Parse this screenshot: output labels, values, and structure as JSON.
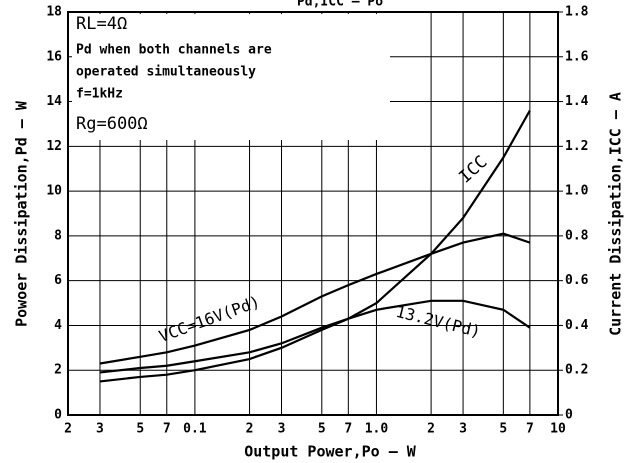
{
  "chart_data": {
    "type": "line",
    "title": "Pd,ICC – Po",
    "xlabel": "Output Power,Po – W",
    "ylabel": "Powoer Dissipation,Pd – W",
    "y2label": "Current Dissipation,ICC – A",
    "log_x": true,
    "grid": true,
    "x": [
      0.03,
      0.05,
      0.07,
      0.1,
      0.2,
      0.3,
      0.5,
      0.7,
      1,
      2,
      3,
      5,
      7
    ],
    "series": [
      {
        "name": "VCC=16V(Pd)",
        "color": "#000000",
        "values": [
          2.3,
          2.6,
          2.8,
          3.1,
          3.8,
          4.4,
          5.3,
          5.8,
          6.3,
          7.2,
          7.7,
          8.1,
          7.7
        ]
      },
      {
        "name": "13.2V(Pd)",
        "color": "#000000",
        "values": [
          1.9,
          2.1,
          2.2,
          2.4,
          2.8,
          3.2,
          3.9,
          4.3,
          4.7,
          5.1,
          5.1,
          4.7,
          3.9
        ]
      },
      {
        "name": "ICC",
        "color": "#000000",
        "axis": "y2",
        "values": [
          0.15,
          0.17,
          0.18,
          0.2,
          0.25,
          0.3,
          0.38,
          0.43,
          0.5,
          0.72,
          0.88,
          1.15,
          1.36
        ]
      }
    ],
    "xlim": [
      0.02,
      10
    ],
    "xticks": [
      {
        "value": 0.02,
        "label": "2"
      },
      {
        "value": 0.03,
        "label": "3"
      },
      {
        "value": 0.05,
        "label": "5"
      },
      {
        "value": 0.07,
        "label": "7"
      },
      0.1,
      {
        "value": 0.2,
        "label": "2"
      },
      {
        "value": 0.3,
        "label": "3"
      },
      {
        "value": 0.5,
        "label": "5"
      },
      {
        "value": 0.7,
        "label": "7"
      },
      {
        "value": 1,
        "label": "1.0"
      },
      2,
      3,
      5,
      7,
      10
    ],
    "ylim": [
      0,
      18
    ],
    "yticks": [
      0,
      2,
      4,
      6,
      8,
      10,
      12,
      14,
      16,
      18
    ],
    "y2lim": [
      0,
      1.8
    ],
    "y2ticks": [
      0,
      0.2,
      0.4,
      0.6,
      0.8,
      {
        "value": 1,
        "label": "1.0"
      },
      1.2,
      1.4,
      1.6,
      1.8
    ],
    "annotations": [
      "RL=4Ω",
      "Pd when both channels are",
      "operated simultaneously",
      "f=1kHz",
      "Rg=600Ω"
    ]
  }
}
